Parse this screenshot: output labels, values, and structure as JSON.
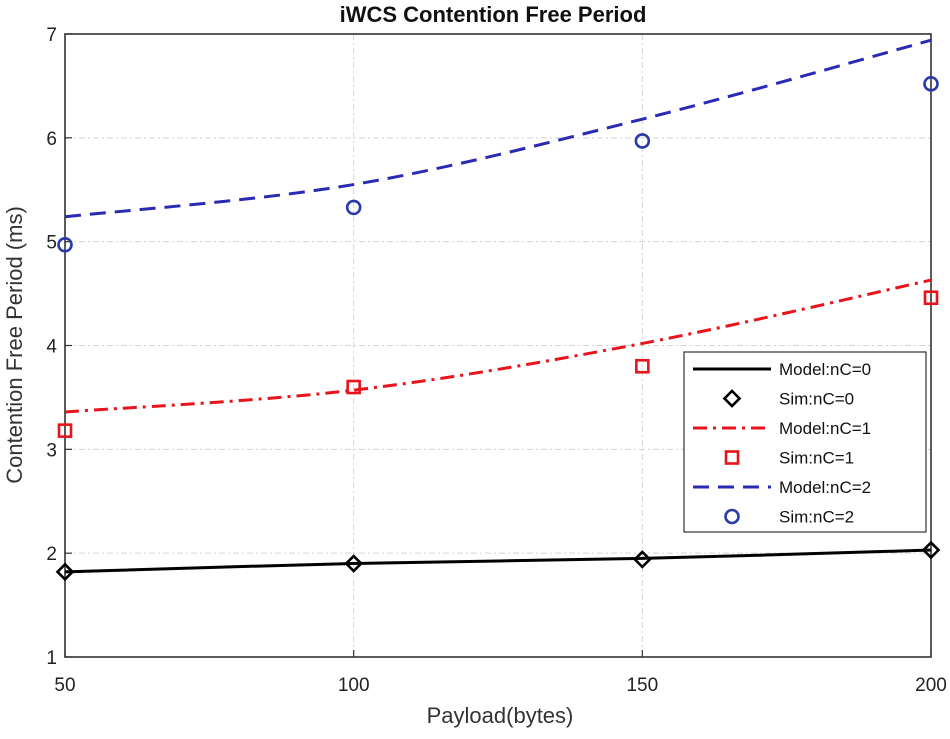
{
  "chart_data": {
    "type": "line",
    "title": "iWCS Contention Free Period",
    "xlabel": "Payload(bytes)",
    "ylabel": "Contention Free Period (ms)",
    "xlim": [
      50,
      200
    ],
    "ylim": [
      1,
      7
    ],
    "x_ticks": [
      "50",
      "100",
      "150",
      "200"
    ],
    "y_ticks": [
      "1",
      "2",
      "3",
      "4",
      "5",
      "6",
      "7"
    ],
    "grid": true,
    "legend_position": "center-right",
    "series": [
      {
        "name": "Model:nC=0",
        "kind": "line",
        "style": "solid",
        "color": "#000000",
        "x": [
          50,
          100,
          150,
          200
        ],
        "y": [
          1.82,
          1.9,
          1.95,
          2.03
        ]
      },
      {
        "name": "Sim:nC=0",
        "kind": "marker",
        "marker": "diamond",
        "color": "#000000",
        "x": [
          50,
          100,
          150,
          200
        ],
        "y": [
          1.82,
          1.9,
          1.94,
          2.03
        ]
      },
      {
        "name": "Model:nC=1",
        "kind": "line",
        "style": "dashdot",
        "color": "#e8141c",
        "x": [
          50,
          100,
          150,
          200
        ],
        "y": [
          3.36,
          3.57,
          4.02,
          4.63
        ]
      },
      {
        "name": "Sim:nC=1",
        "kind": "marker",
        "marker": "square",
        "color": "#e8141c",
        "x": [
          50,
          100,
          150,
          200
        ],
        "y": [
          3.18,
          3.6,
          3.8,
          4.46
        ]
      },
      {
        "name": "Model:nC=2",
        "kind": "line",
        "style": "dashed",
        "color": "#2a2ab4",
        "x": [
          50,
          100,
          150,
          200
        ],
        "y": [
          5.24,
          5.55,
          6.18,
          6.94
        ]
      },
      {
        "name": "Sim:nC=2",
        "kind": "marker",
        "marker": "circle",
        "color": "#2a3aa8",
        "x": [
          50,
          100,
          150,
          200
        ],
        "y": [
          4.97,
          5.33,
          5.97,
          6.52
        ]
      }
    ]
  }
}
